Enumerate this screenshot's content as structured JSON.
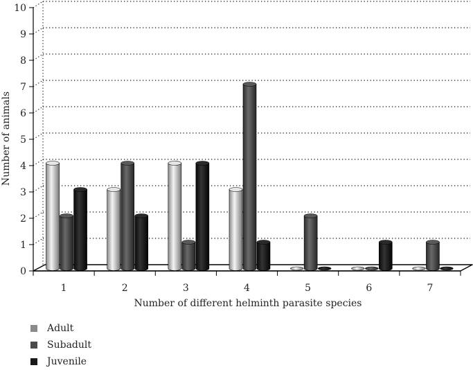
{
  "chart_data": {
    "type": "bar",
    "style": "3d",
    "categories": [
      "1",
      "2",
      "3",
      "4",
      "5",
      "6",
      "7"
    ],
    "series": [
      {
        "name": "Adult",
        "values": [
          4,
          3,
          4,
          3,
          0,
          0,
          0
        ],
        "color": "#c0c0c0"
      },
      {
        "name": "Subadult",
        "values": [
          2,
          4,
          1,
          7,
          2,
          0,
          1
        ],
        "color": "#4a4a4a"
      },
      {
        "name": "Juvenile",
        "values": [
          3,
          2,
          4,
          1,
          0,
          1,
          0
        ],
        "color": "#1a1a1a"
      }
    ],
    "xlabel": "Number of different helminth parasite species",
    "ylabel": "Number of animals",
    "ylim": [
      0,
      10
    ],
    "yticks": [
      "0",
      "1",
      "2",
      "3",
      "4",
      "5",
      "6",
      "7",
      "8",
      "9",
      "10"
    ],
    "grid": true,
    "legend_position": "bottom-left"
  },
  "legend": {
    "items": [
      {
        "label": "Adult",
        "color": "#8a8a8a"
      },
      {
        "label": "Subadult",
        "color": "#4a4a4a"
      },
      {
        "label": "Juvenile",
        "color": "#1a1a1a"
      }
    ]
  }
}
